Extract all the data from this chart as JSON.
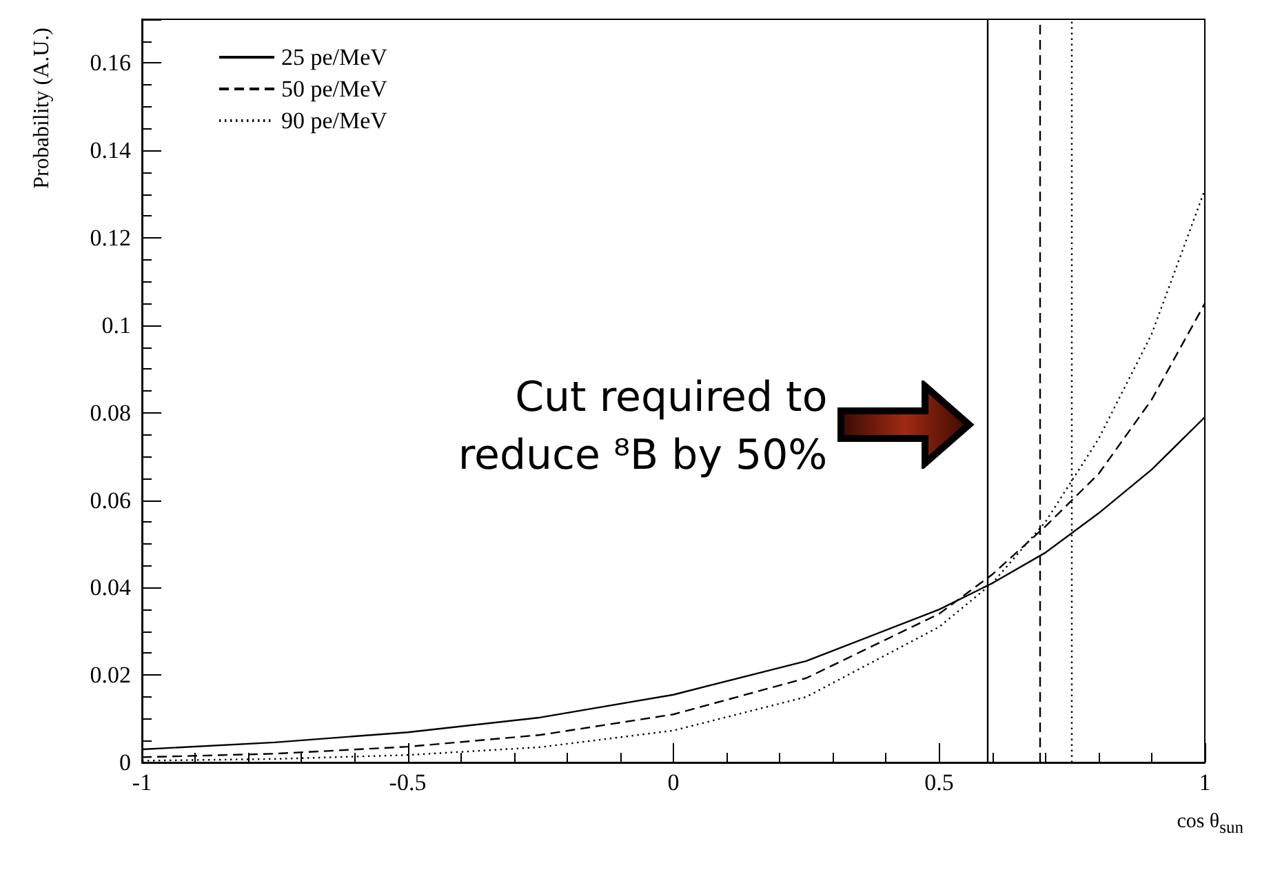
{
  "chart_data": {
    "type": "line",
    "xlabel": "cos θ$_{sun}$",
    "ylabel": "Probability (A.U.)",
    "x": [
      -1,
      -0.75,
      -0.5,
      -0.25,
      0,
      0.25,
      0.5,
      0.6,
      0.7,
      0.8,
      0.9,
      1.0
    ],
    "series": [
      {
        "name": "25 pe/MeV",
        "color": "#000000",
        "line_style": "solid",
        "values": [
          0.003,
          0.0046,
          0.0069,
          0.0103,
          0.0155,
          0.0232,
          0.035,
          0.041,
          0.048,
          0.057,
          0.067,
          0.079
        ]
      },
      {
        "name": "50 pe/MeV",
        "color": "#000000",
        "line_style": "dashed",
        "values": [
          0.0012,
          0.002,
          0.0036,
          0.0063,
          0.011,
          0.0193,
          0.034,
          0.043,
          0.054,
          0.066,
          0.083,
          0.105
        ]
      },
      {
        "name": "90 pe/MeV",
        "color": "#000000",
        "line_style": "dotted",
        "values": [
          0.0004,
          0.0008,
          0.0017,
          0.0035,
          0.0073,
          0.015,
          0.031,
          0.041,
          0.055,
          0.074,
          0.098,
          0.131
        ]
      }
    ],
    "ref_lines": [
      {
        "axis": "x",
        "value": 0.588,
        "color": "#000000",
        "line_style": "solid"
      },
      {
        "axis": "x",
        "value": 0.688,
        "color": "#000000",
        "line_style": "dashed"
      },
      {
        "axis": "x",
        "value": 0.751,
        "color": "#000000",
        "line_style": "dotted"
      }
    ],
    "annotations": [
      "Cut required to reduce ⁸B by 50%"
    ],
    "xlim": [
      -1,
      1
    ],
    "ylim": [
      0,
      0.17
    ],
    "xticks": [
      -1,
      -0.5,
      0,
      0.5,
      1
    ],
    "yticks": [
      0,
      0.02,
      0.04,
      0.06,
      0.08,
      0.1,
      0.12,
      0.14,
      0.16
    ],
    "marker": "none",
    "grid": false,
    "legend": "top left"
  }
}
